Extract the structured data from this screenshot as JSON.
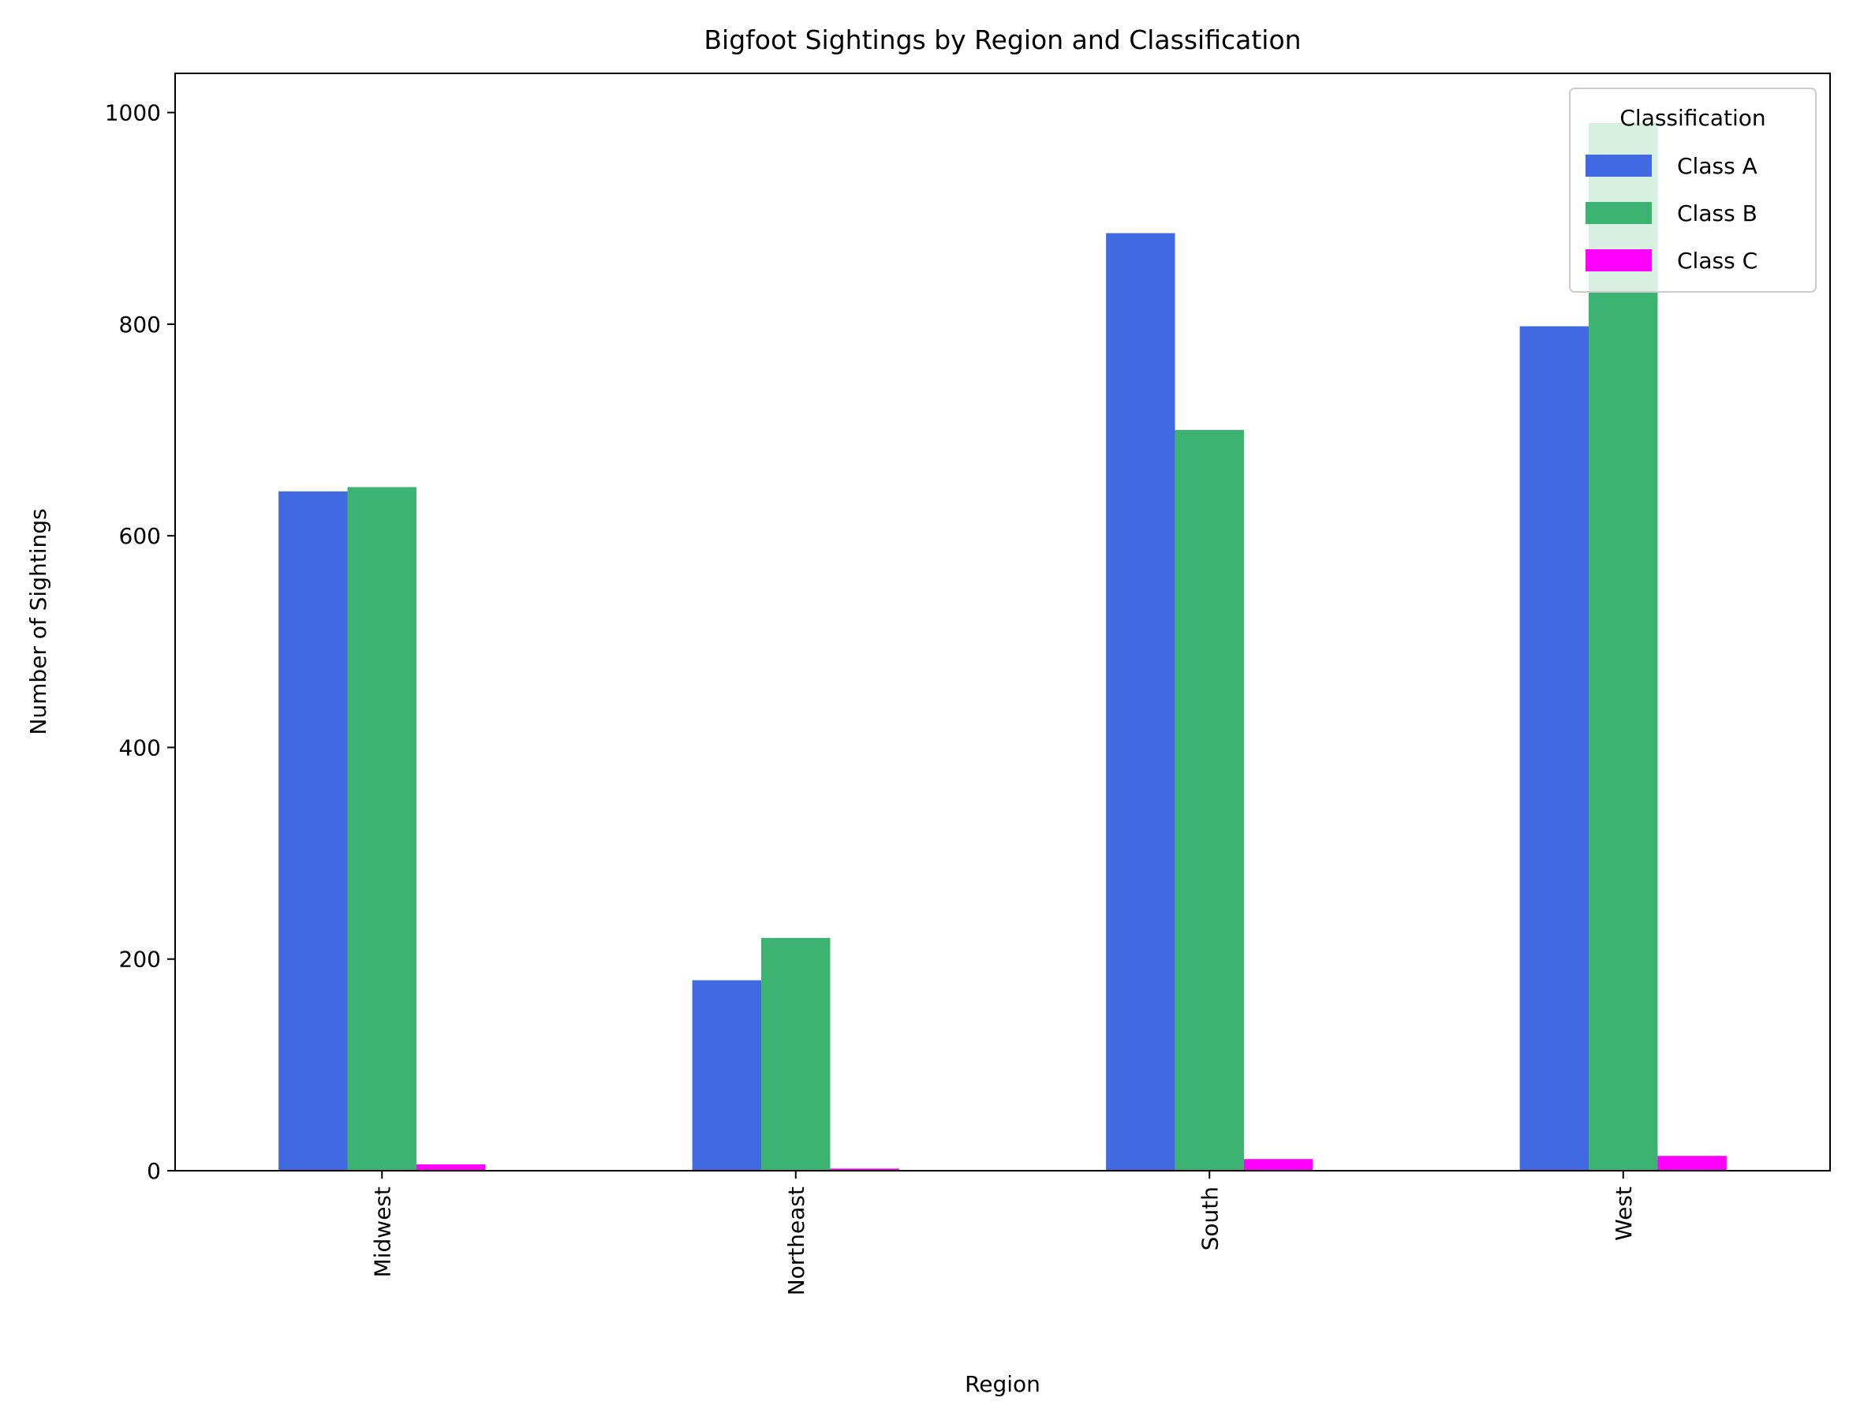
{
  "chart_data": {
    "type": "bar",
    "title": "Bigfoot Sightings by Region and Classification",
    "xlabel": "Region",
    "ylabel": "Number of Sightings",
    "categories": [
      "Midwest",
      "Northeast",
      "South",
      "West"
    ],
    "series": [
      {
        "name": "Class A",
        "color": "#4169E1",
        "values": [
          642,
          180,
          886,
          798
        ]
      },
      {
        "name": "Class B",
        "color": "#3CB371",
        "values": [
          646,
          220,
          700,
          990
        ]
      },
      {
        "name": "Class C",
        "color": "#FF00FF",
        "values": [
          6,
          2,
          11,
          14
        ]
      }
    ],
    "ylim": [
      0,
      1037
    ],
    "yticks": [
      0,
      200,
      400,
      600,
      800,
      1000
    ],
    "grid": false,
    "legend": {
      "title": "Classification",
      "placement": "top-right"
    }
  }
}
